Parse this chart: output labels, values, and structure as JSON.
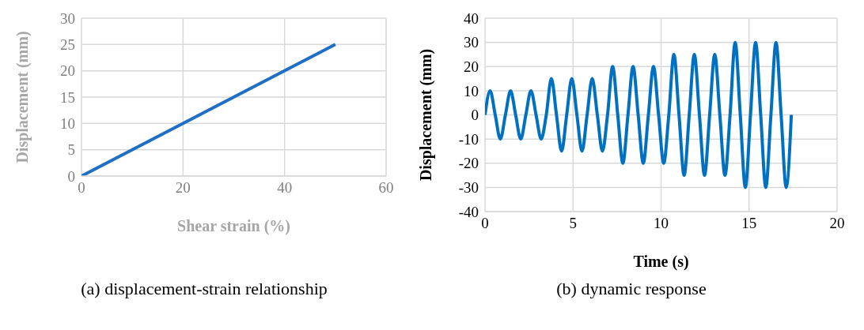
{
  "chart_data": [
    {
      "type": "line",
      "xlabel": "Shear strain (%)",
      "ylabel": "Displacement  (mm)",
      "x": [
        0,
        50
      ],
      "series": [
        {
          "color": "#1f6fc5",
          "values": [
            0,
            25
          ]
        }
      ],
      "xlim": [
        0,
        60
      ],
      "xticks": [
        0,
        20,
        40,
        60
      ],
      "ylim": [
        0,
        30
      ],
      "yticks": [
        0,
        5,
        10,
        15,
        20,
        25,
        30
      ],
      "grid": true,
      "legend": false,
      "marker": "none",
      "line_style": "solid",
      "annotations": [
        "(a) displacement-strain relationship"
      ]
    },
    {
      "type": "line",
      "xlabel": "Time (s)",
      "ylabel": "Displacement  (mm)",
      "x": [
        0,
        0.29,
        0.58,
        0.87,
        1.16,
        1.45,
        1.74,
        2.03,
        2.32,
        2.61,
        2.9,
        3.19,
        3.48,
        3.77,
        4.06,
        4.35,
        4.64,
        4.93,
        5.22,
        5.51,
        5.8,
        6.09,
        6.38,
        6.67,
        6.96,
        7.25,
        7.54,
        7.83,
        8.12,
        8.41,
        8.7,
        8.99,
        9.28,
        9.57,
        9.86,
        10.15,
        10.44,
        10.73,
        11.02,
        11.31,
        11.6,
        11.89,
        12.18,
        12.47,
        12.76,
        13.05,
        13.34,
        13.63,
        13.92,
        14.21,
        14.5,
        14.79,
        15.08,
        15.37,
        15.66,
        15.95,
        16.24,
        16.53,
        16.82,
        17.11,
        17.4
      ],
      "series": [
        {
          "color": "#0070c0",
          "values": [
            0,
            10,
            0,
            -10,
            0,
            10,
            0,
            -10,
            0,
            10,
            0,
            -10,
            0,
            15,
            0,
            -15,
            0,
            15,
            0,
            -15,
            0,
            15,
            0,
            -15,
            0,
            20,
            0,
            -20,
            0,
            20,
            0,
            -20,
            0,
            20,
            0,
            -20,
            0,
            25,
            0,
            -25,
            0,
            25,
            0,
            -25,
            0,
            25,
            0,
            -25,
            0,
            30,
            0,
            -30,
            0,
            30,
            0,
            -30,
            0,
            30,
            0,
            -30,
            0
          ]
        }
      ],
      "xlim": [
        0,
        20
      ],
      "xticks": [
        0,
        5,
        10,
        15,
        20
      ],
      "ylim": [
        -40,
        40
      ],
      "yticks": [
        -40,
        -30,
        -20,
        -10,
        0,
        10,
        20,
        30,
        40
      ],
      "grid": true,
      "legend": false,
      "marker": "none",
      "line_style": "solid",
      "annotations": [
        "(b) dynamic response"
      ]
    }
  ]
}
